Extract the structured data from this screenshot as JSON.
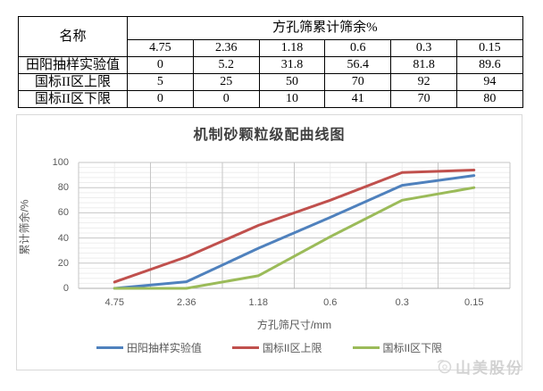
{
  "table": {
    "name_header": "名称",
    "group_header": "方孔筛累计筛余%",
    "sizes": [
      "4.75",
      "2.36",
      "1.18",
      "0.6",
      "0.3",
      "0.15"
    ],
    "rows": [
      {
        "label": "田阳抽样实验值",
        "values": [
          "0",
          "5.2",
          "31.8",
          "56.4",
          "81.8",
          "89.6"
        ]
      },
      {
        "label": "国标II区上限",
        "values": [
          "5",
          "25",
          "50",
          "70",
          "92",
          "94"
        ]
      },
      {
        "label": "国标II区下限",
        "values": [
          "0",
          "0",
          "10",
          "41",
          "70",
          "80"
        ]
      }
    ]
  },
  "chart_data": {
    "type": "line",
    "title": "机制砂颗粒级配曲线图",
    "xlabel": "方孔筛尺寸/mm",
    "ylabel": "累计筛余/%",
    "categories": [
      "4.75",
      "2.36",
      "1.18",
      "0.6",
      "0.3",
      "0.15"
    ],
    "series": [
      {
        "name": "田阳抽样实验值",
        "color": "#4F81BD",
        "values": [
          0,
          5.2,
          31.8,
          56.4,
          81.8,
          89.6
        ]
      },
      {
        "name": "国标II区上限",
        "color": "#C0504D",
        "values": [
          5,
          25,
          50,
          70,
          92,
          94
        ]
      },
      {
        "name": "国标II区下限",
        "color": "#9BBB59",
        "values": [
          0,
          0,
          10,
          41,
          70,
          80
        ]
      }
    ],
    "ylim": [
      0,
      100
    ],
    "y_major": 20,
    "y_minor": 4,
    "yticks": [
      "0",
      "20",
      "40",
      "60",
      "80",
      "100"
    ],
    "grid": true,
    "legend_position": "bottom"
  },
  "watermark": {
    "text": "山美股份"
  },
  "colors": {
    "grid_major": "#c6c6c6",
    "grid_minor": "#ededed",
    "axis_line": "#adadad",
    "tick_text": "#595959",
    "chart_border": "#d9d9d9",
    "watermark": "#d2d2d2"
  }
}
